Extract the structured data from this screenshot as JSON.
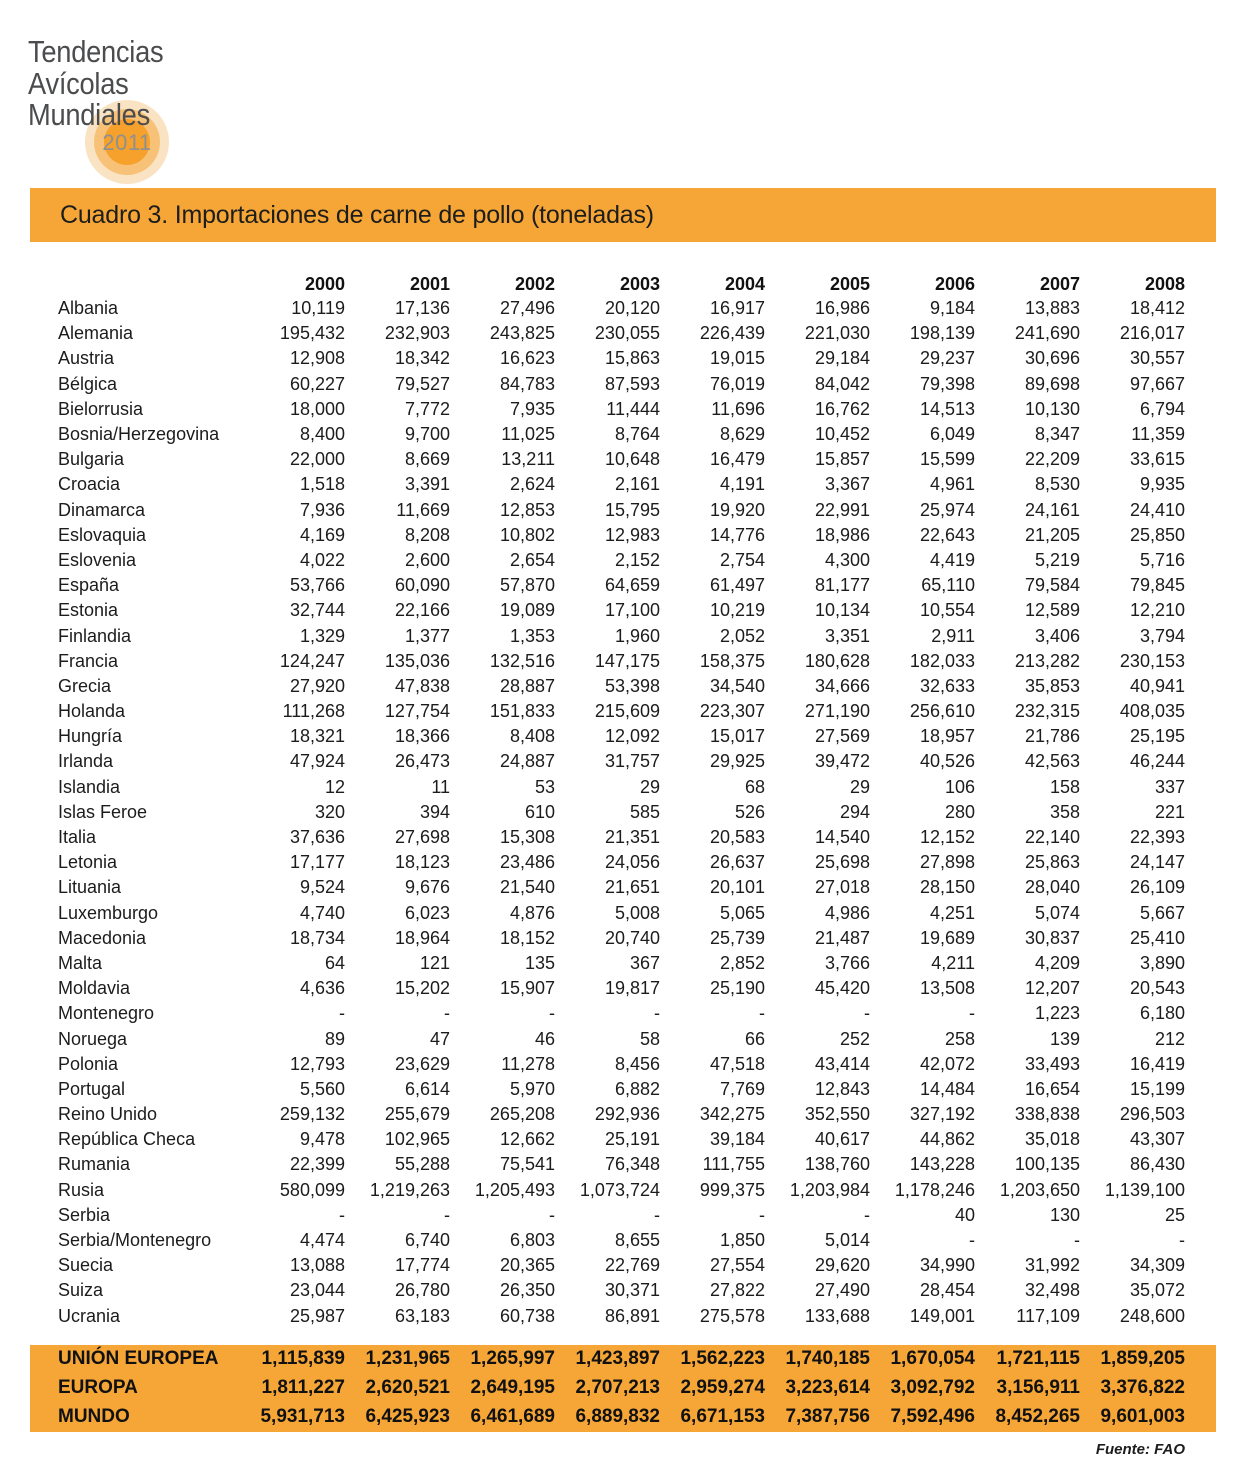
{
  "logo": {
    "lines": [
      "Tendencias",
      "Avícolas",
      "Mundiales"
    ],
    "year_badge": "2011"
  },
  "title_bar": {
    "title": "Cuadro 3. Importaciones de carne de pollo (toneladas)"
  },
  "table": {
    "year_headers": [
      "2000",
      "2001",
      "2002",
      "2003",
      "2004",
      "2005",
      "2006",
      "2007",
      "2008"
    ],
    "rows": [
      {
        "country": "Albania",
        "values": [
          "10,119",
          "17,136",
          "27,496",
          "20,120",
          "16,917",
          "16,986",
          "9,184",
          "13,883",
          "18,412"
        ]
      },
      {
        "country": "Alemania",
        "values": [
          "195,432",
          "232,903",
          "243,825",
          "230,055",
          "226,439",
          "221,030",
          "198,139",
          "241,690",
          "216,017"
        ]
      },
      {
        "country": "Austria",
        "values": [
          "12,908",
          "18,342",
          "16,623",
          "15,863",
          "19,015",
          "29,184",
          "29,237",
          "30,696",
          "30,557"
        ]
      },
      {
        "country": "Bélgica",
        "values": [
          "60,227",
          "79,527",
          "84,783",
          "87,593",
          "76,019",
          "84,042",
          "79,398",
          "89,698",
          "97,667"
        ]
      },
      {
        "country": "Bielorrusia",
        "values": [
          "18,000",
          "7,772",
          "7,935",
          "11,444",
          "11,696",
          "16,762",
          "14,513",
          "10,130",
          "6,794"
        ]
      },
      {
        "country": "Bosnia/Herzegovina",
        "values": [
          "8,400",
          "9,700",
          "11,025",
          "8,764",
          "8,629",
          "10,452",
          "6,049",
          "8,347",
          "11,359"
        ]
      },
      {
        "country": "Bulgaria",
        "values": [
          "22,000",
          "8,669",
          "13,211",
          "10,648",
          "16,479",
          "15,857",
          "15,599",
          "22,209",
          "33,615"
        ]
      },
      {
        "country": "Croacia",
        "values": [
          "1,518",
          "3,391",
          "2,624",
          "2,161",
          "4,191",
          "3,367",
          "4,961",
          "8,530",
          "9,935"
        ]
      },
      {
        "country": "Dinamarca",
        "values": [
          "7,936",
          "11,669",
          "12,853",
          "15,795",
          "19,920",
          "22,991",
          "25,974",
          "24,161",
          "24,410"
        ]
      },
      {
        "country": "Eslovaquia",
        "values": [
          "4,169",
          "8,208",
          "10,802",
          "12,983",
          "14,776",
          "18,986",
          "22,643",
          "21,205",
          "25,850"
        ]
      },
      {
        "country": "Eslovenia",
        "values": [
          "4,022",
          "2,600",
          "2,654",
          "2,152",
          "2,754",
          "4,300",
          "4,419",
          "5,219",
          "5,716"
        ]
      },
      {
        "country": "España",
        "values": [
          "53,766",
          "60,090",
          "57,870",
          "64,659",
          "61,497",
          "81,177",
          "65,110",
          "79,584",
          "79,845"
        ]
      },
      {
        "country": "Estonia",
        "values": [
          "32,744",
          "22,166",
          "19,089",
          "17,100",
          "10,219",
          "10,134",
          "10,554",
          "12,589",
          "12,210"
        ]
      },
      {
        "country": "Finlandia",
        "values": [
          "1,329",
          "1,377",
          "1,353",
          "1,960",
          "2,052",
          "3,351",
          "2,911",
          "3,406",
          "3,794"
        ]
      },
      {
        "country": "Francia",
        "values": [
          "124,247",
          "135,036",
          "132,516",
          "147,175",
          "158,375",
          "180,628",
          "182,033",
          "213,282",
          "230,153"
        ]
      },
      {
        "country": "Grecia",
        "values": [
          "27,920",
          "47,838",
          "28,887",
          "53,398",
          "34,540",
          "34,666",
          "32,633",
          "35,853",
          "40,941"
        ]
      },
      {
        "country": "Holanda",
        "values": [
          "111,268",
          "127,754",
          "151,833",
          "215,609",
          "223,307",
          "271,190",
          "256,610",
          "232,315",
          "408,035"
        ]
      },
      {
        "country": "Hungría",
        "values": [
          "18,321",
          "18,366",
          "8,408",
          "12,092",
          "15,017",
          "27,569",
          "18,957",
          "21,786",
          "25,195"
        ]
      },
      {
        "country": "Irlanda",
        "values": [
          "47,924",
          "26,473",
          "24,887",
          "31,757",
          "29,925",
          "39,472",
          "40,526",
          "42,563",
          "46,244"
        ]
      },
      {
        "country": "Islandia",
        "values": [
          "12",
          "11",
          "53",
          "29",
          "68",
          "29",
          "106",
          "158",
          "337"
        ]
      },
      {
        "country": "Islas Feroe",
        "values": [
          "320",
          "394",
          "610",
          "585",
          "526",
          "294",
          "280",
          "358",
          "221"
        ]
      },
      {
        "country": "Italia",
        "values": [
          "37,636",
          "27,698",
          "15,308",
          "21,351",
          "20,583",
          "14,540",
          "12,152",
          "22,140",
          "22,393"
        ]
      },
      {
        "country": "Letonia",
        "values": [
          "17,177",
          "18,123",
          "23,486",
          "24,056",
          "26,637",
          "25,698",
          "27,898",
          "25,863",
          "24,147"
        ]
      },
      {
        "country": "Lituania",
        "values": [
          "9,524",
          "9,676",
          "21,540",
          "21,651",
          "20,101",
          "27,018",
          "28,150",
          "28,040",
          "26,109"
        ]
      },
      {
        "country": "Luxemburgo",
        "values": [
          "4,740",
          "6,023",
          "4,876",
          "5,008",
          "5,065",
          "4,986",
          "4,251",
          "5,074",
          "5,667"
        ]
      },
      {
        "country": "Macedonia",
        "values": [
          "18,734",
          "18,964",
          "18,152",
          "20,740",
          "25,739",
          "21,487",
          "19,689",
          "30,837",
          "25,410"
        ]
      },
      {
        "country": "Malta",
        "values": [
          "64",
          "121",
          "135",
          "367",
          "2,852",
          "3,766",
          "4,211",
          "4,209",
          "3,890"
        ]
      },
      {
        "country": "Moldavia",
        "values": [
          "4,636",
          "15,202",
          "15,907",
          "19,817",
          "25,190",
          "45,420",
          "13,508",
          "12,207",
          "20,543"
        ]
      },
      {
        "country": "Montenegro",
        "values": [
          "-",
          "-",
          "-",
          "-",
          "-",
          "-",
          "-",
          "1,223",
          "6,180"
        ]
      },
      {
        "country": "Noruega",
        "values": [
          "89",
          "47",
          "46",
          "58",
          "66",
          "252",
          "258",
          "139",
          "212"
        ]
      },
      {
        "country": "Polonia",
        "values": [
          "12,793",
          "23,629",
          "11,278",
          "8,456",
          "47,518",
          "43,414",
          "42,072",
          "33,493",
          "16,419"
        ]
      },
      {
        "country": "Portugal",
        "values": [
          "5,560",
          "6,614",
          "5,970",
          "6,882",
          "7,769",
          "12,843",
          "14,484",
          "16,654",
          "15,199"
        ]
      },
      {
        "country": "Reino Unido",
        "values": [
          "259,132",
          "255,679",
          "265,208",
          "292,936",
          "342,275",
          "352,550",
          "327,192",
          "338,838",
          "296,503"
        ]
      },
      {
        "country": "República Checa",
        "values": [
          "9,478",
          "102,965",
          "12,662",
          "25,191",
          "39,184",
          "40,617",
          "44,862",
          "35,018",
          "43,307"
        ]
      },
      {
        "country": "Rumania",
        "values": [
          "22,399",
          "55,288",
          "75,541",
          "76,348",
          "111,755",
          "138,760",
          "143,228",
          "100,135",
          "86,430"
        ]
      },
      {
        "country": "Rusia",
        "values": [
          "580,099",
          "1,219,263",
          "1,205,493",
          "1,073,724",
          "999,375",
          "1,203,984",
          "1,178,246",
          "1,203,650",
          "1,139,100"
        ]
      },
      {
        "country": "Serbia",
        "values": [
          "-",
          "-",
          "-",
          "-",
          "-",
          "-",
          "40",
          "130",
          "25"
        ]
      },
      {
        "country": "Serbia/Montenegro",
        "values": [
          "4,474",
          "6,740",
          "6,803",
          "8,655",
          "1,850",
          "5,014",
          "-",
          "-",
          "-"
        ]
      },
      {
        "country": "Suecia",
        "values": [
          "13,088",
          "17,774",
          "20,365",
          "22,769",
          "27,554",
          "29,620",
          "34,990",
          "31,992",
          "34,309"
        ]
      },
      {
        "country": "Suiza",
        "values": [
          "23,044",
          "26,780",
          "26,350",
          "30,371",
          "27,822",
          "27,490",
          "28,454",
          "32,498",
          "35,072"
        ]
      },
      {
        "country": "Ucrania",
        "values": [
          "25,987",
          "63,183",
          "60,738",
          "86,891",
          "275,578",
          "133,688",
          "149,001",
          "117,109",
          "248,600"
        ]
      }
    ],
    "summary_rows": [
      {
        "label": "UNIÓN EUROPEA",
        "values": [
          "1,115,839",
          "1,231,965",
          "1,265,997",
          "1,423,897",
          "1,562,223",
          "1,740,185",
          "1,670,054",
          "1,721,115",
          "1,859,205"
        ]
      },
      {
        "label": "EUROPA",
        "values": [
          "1,811,227",
          "2,620,521",
          "2,649,195",
          "2,707,213",
          "2,959,274",
          "3,223,614",
          "3,092,792",
          "3,156,911",
          "3,376,822"
        ]
      },
      {
        "label": "MUNDO",
        "values": [
          "5,931,713",
          "6,425,923",
          "6,461,689",
          "6,889,832",
          "6,671,153",
          "7,387,756",
          "7,592,496",
          "8,452,265",
          "9,601,003"
        ]
      }
    ]
  },
  "footer": {
    "source": "Fuente: FAO"
  },
  "colors": {
    "accent_orange": "#F6A637",
    "badge_inner": "#F5A12B",
    "badge_mid": "#F7C277",
    "badge_outer": "#FAE3C2",
    "logo_text": "#4B4C4E",
    "badge_year_text": "#8E9092"
  }
}
